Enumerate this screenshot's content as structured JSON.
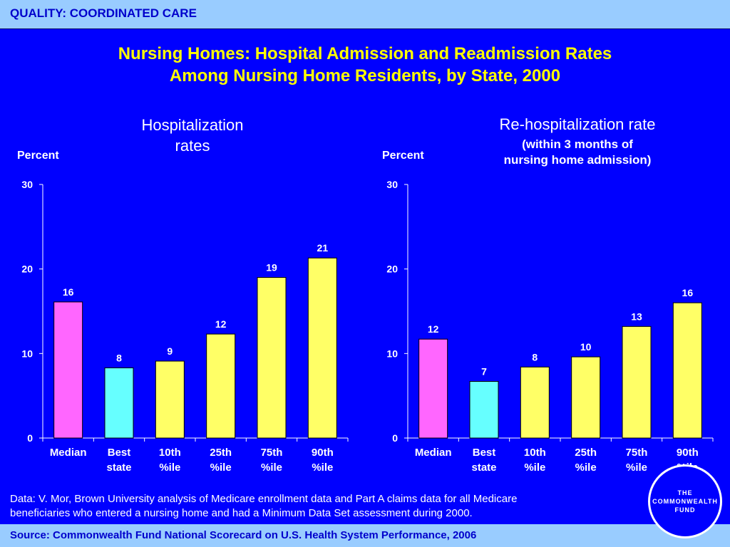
{
  "header": {
    "section": "QUALITY: COORDINATED CARE"
  },
  "title": {
    "line1": "Nursing Homes: Hospital Admission and Readmission Rates",
    "line2": "Among Nursing Home Residents, by State, 2000"
  },
  "panels": {
    "left": {
      "title_line1": "Hospitalization",
      "title_line2": "rates",
      "unit": "Percent"
    },
    "right": {
      "title_main": "Re-hospitalization rate",
      "title_sub_line1": "(within 3 months of",
      "title_sub_line2": "nursing home admission)",
      "unit": "Percent"
    }
  },
  "colors": {
    "median": "#ff66ff",
    "best": "#66ffff",
    "percentile": "#ffff66",
    "background": "#0000ff",
    "title": "#ffff00"
  },
  "chart_data": [
    {
      "type": "bar",
      "title": "Hospitalization rates",
      "ylabel": "Percent",
      "ylim": [
        0,
        30
      ],
      "yticks": [
        0,
        10,
        20,
        30
      ],
      "categories": [
        [
          "Median"
        ],
        [
          "Best",
          "state"
        ],
        [
          "10th",
          "%ile"
        ],
        [
          "25th",
          "%ile"
        ],
        [
          "75th",
          "%ile"
        ],
        [
          "90th",
          "%ile"
        ]
      ],
      "values": [
        16.1,
        8.3,
        9.1,
        12.3,
        19.0,
        21.3
      ],
      "data_labels": [
        "16",
        "8",
        "9",
        "12",
        "19",
        "21"
      ],
      "bar_colors": [
        "median",
        "best",
        "percentile",
        "percentile",
        "percentile",
        "percentile"
      ]
    },
    {
      "type": "bar",
      "title": "Re-hospitalization rate (within 3 months of nursing home admission)",
      "ylabel": "Percent",
      "ylim": [
        0,
        30
      ],
      "yticks": [
        0,
        10,
        20,
        30
      ],
      "categories": [
        [
          "Median"
        ],
        [
          "Best",
          "state"
        ],
        [
          "10th",
          "%ile"
        ],
        [
          "25th",
          "%ile"
        ],
        [
          "75th",
          "%ile"
        ],
        [
          "90th",
          "%ile"
        ]
      ],
      "values": [
        11.7,
        6.7,
        8.4,
        9.6,
        13.2,
        16.0
      ],
      "data_labels": [
        "12",
        "7",
        "8",
        "10",
        "13",
        "16"
      ],
      "bar_colors": [
        "median",
        "best",
        "percentile",
        "percentile",
        "percentile",
        "percentile"
      ]
    }
  ],
  "footer": {
    "note_line1": "Data: V. Mor, Brown University analysis of Medicare enrollment data and Part A claims data for all Medicare",
    "note_line2": "beneficiaries who entered a nursing home and had a Minimum Data Set assessment during 2000.",
    "source": "Source: Commonwealth Fund National Scorecard on U.S. Health System Performance, 2006"
  },
  "logo": {
    "line1": "THE",
    "line2": "COMMONWEALTH",
    "line3": "FUND"
  }
}
